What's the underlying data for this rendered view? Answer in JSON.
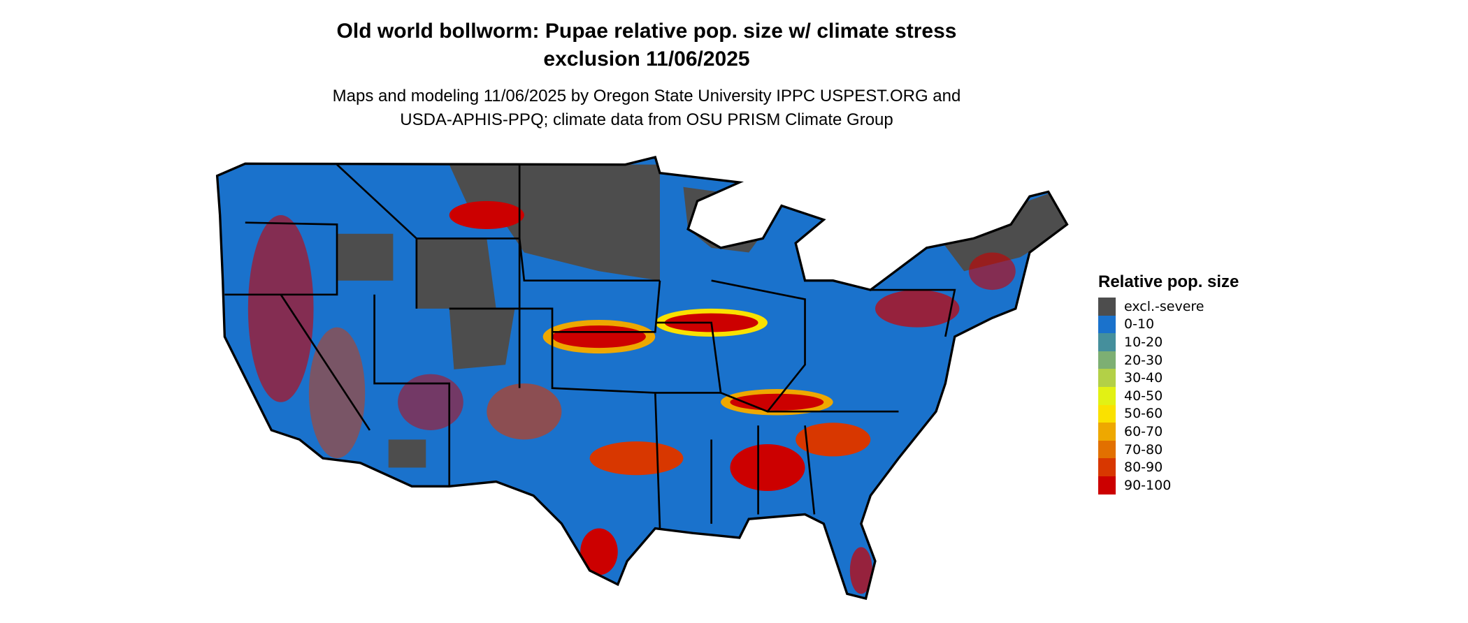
{
  "title_line1": "Old world bollworm: Pupae relative pop. size w/ climate stress",
  "title_line2": "exclusion 11/06/2025",
  "subtitle_line1": "Maps and modeling 11/06/2025 by Oregon State University IPPC USPEST.ORG and",
  "subtitle_line2": "USDA-APHIS-PPQ; climate data from OSU PRISM Climate Group",
  "legend": {
    "title": "Relative pop. size",
    "items": [
      {
        "label": "excl.-severe",
        "color": "#4d4d4d"
      },
      {
        "label": "0-10",
        "color": "#1a72cc"
      },
      {
        "label": "10-20",
        "color": "#458f9c"
      },
      {
        "label": "20-30",
        "color": "#7daf73"
      },
      {
        "label": "30-40",
        "color": "#b3d047"
      },
      {
        "label": "40-50",
        "color": "#e2f114"
      },
      {
        "label": "50-60",
        "color": "#fae100"
      },
      {
        "label": "60-70",
        "color": "#eea800"
      },
      {
        "label": "70-80",
        "color": "#e27000"
      },
      {
        "label": "80-90",
        "color": "#d83700"
      },
      {
        "label": "90-100",
        "color": "#cc0000"
      }
    ]
  }
}
